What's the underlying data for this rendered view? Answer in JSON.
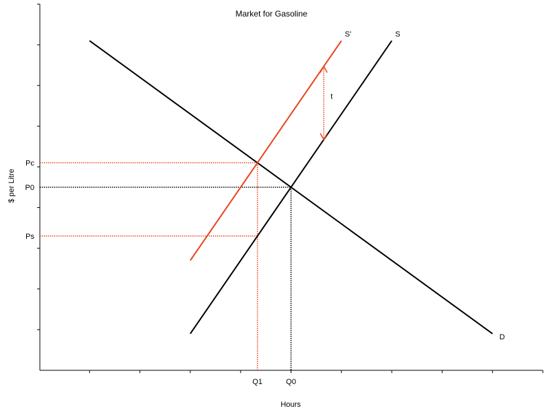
{
  "chart_data": {
    "type": "line",
    "title": "Market for Gasoline",
    "xlabel": "Hours",
    "ylabel": "$ per Litre",
    "grid": false,
    "xlim": [
      0,
      100
    ],
    "ylim": [
      0,
      100
    ],
    "x_tick_count": 10,
    "y_tick_count": 9,
    "series": [
      {
        "name": "D",
        "color": "#000000",
        "points": [
          [
            10,
            90
          ],
          [
            90,
            10
          ]
        ]
      },
      {
        "name": "S",
        "color": "#000000",
        "points": [
          [
            30,
            10
          ],
          [
            70,
            90
          ]
        ]
      },
      {
        "name": "S'",
        "color": "#e8421e",
        "points": [
          [
            30,
            30
          ],
          [
            60,
            90
          ]
        ]
      }
    ],
    "markers": {
      "Q0": 50,
      "Q1": 43.33,
      "P0": 50,
      "Pc": 56.67,
      "Ps": 36.67
    },
    "annotations": {
      "tax_label": "t",
      "tax_x": 56.5
    },
    "colors": {
      "original": "#000000",
      "tax": "#e8421e"
    }
  }
}
